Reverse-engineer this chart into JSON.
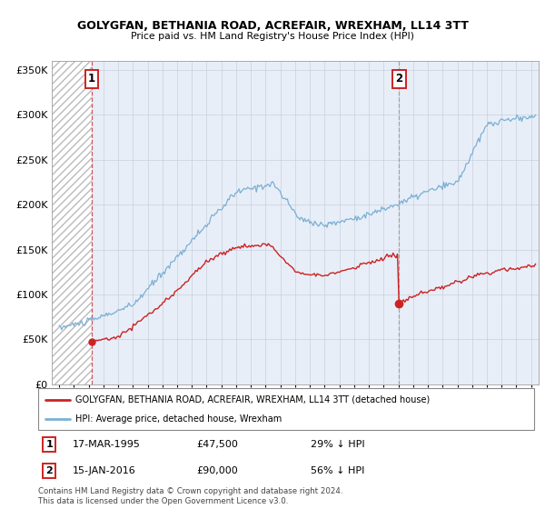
{
  "title": "GOLYGFAN, BETHANIA ROAD, ACREFAIR, WREXHAM, LL14 3TT",
  "subtitle": "Price paid vs. HM Land Registry's House Price Index (HPI)",
  "ylim": [
    0,
    360000
  ],
  "xlim_start": 1992.5,
  "xlim_end": 2025.5,
  "hpi_color": "#7ab0d4",
  "price_color": "#cc2222",
  "vline2_color": "#999999",
  "marker1_date": 1995.21,
  "marker1_price": 47500,
  "marker2_date": 2016.04,
  "marker2_price": 90000,
  "legend_line1": "GOLYGFAN, BETHANIA ROAD, ACREFAIR, WREXHAM, LL14 3TT (detached house)",
  "legend_line2": "HPI: Average price, detached house, Wrexham",
  "ann1_date": "17-MAR-1995",
  "ann1_price": "£47,500",
  "ann1_hpi": "29% ↓ HPI",
  "ann2_date": "15-JAN-2016",
  "ann2_price": "£90,000",
  "ann2_hpi": "56% ↓ HPI",
  "footer": "Contains HM Land Registry data © Crown copyright and database right 2024.\nThis data is licensed under the Open Government Licence v3.0.",
  "bg_color": "#e8eef8",
  "hatch_bg": "#ffffff"
}
